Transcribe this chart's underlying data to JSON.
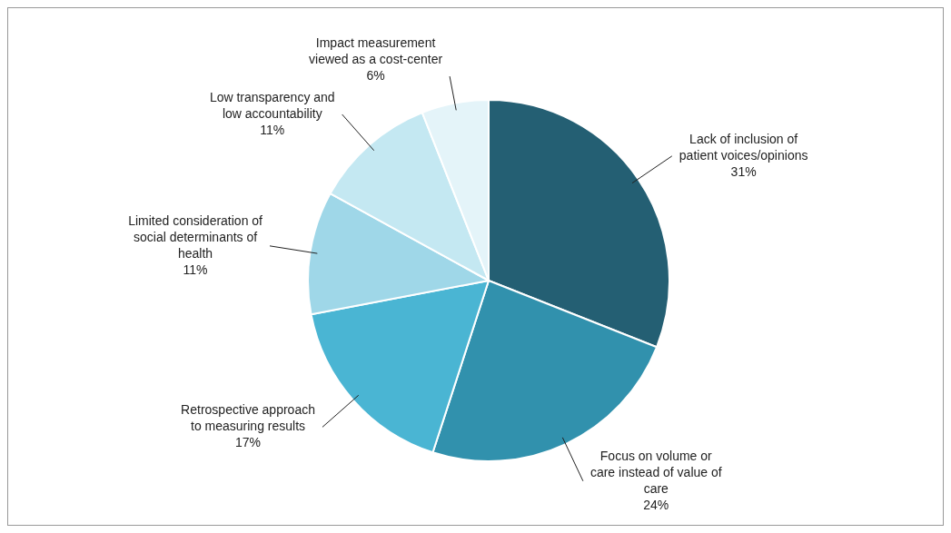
{
  "chart_data": {
    "type": "pie",
    "categories": [
      "Lack of inclusion of patient voices/opinions",
      "Focus on volume or care instead of value of care",
      "Retrospective approach to measuring results",
      "Limited consideration of social determinants of health",
      "Low transparency and low accountability",
      "Impact measurement viewed as a cost-center"
    ],
    "values": [
      31,
      24,
      17,
      11,
      11,
      6
    ],
    "value_labels": [
      "31%",
      "24%",
      "17%",
      "11%",
      "11%",
      "6%"
    ],
    "colors": [
      "#245f73",
      "#3191ad",
      "#4ab5d3",
      "#9fd7e8",
      "#c4e8f2",
      "#e4f4f9"
    ],
    "legend": false
  }
}
